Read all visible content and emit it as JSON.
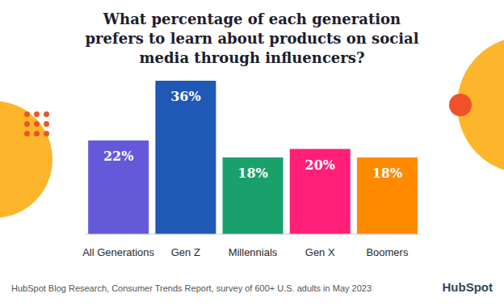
{
  "chart_data": {
    "type": "bar",
    "title": "What percentage of each generation prefers to learn about products on social media through influencers?",
    "categories": [
      "All Generations",
      "Gen Z",
      "Millennials",
      "Gen X",
      "Boomers"
    ],
    "values": [
      22,
      36,
      18,
      20,
      18
    ],
    "value_labels": [
      "22%",
      "36%",
      "18%",
      "20%",
      "18%"
    ],
    "colors": [
      "#6459d8",
      "#1f58b5",
      "#1aa06b",
      "#ff1f78",
      "#ff8a00"
    ],
    "ylim": [
      0,
      36
    ],
    "data_labels": true,
    "tick_labels": "x",
    "grid": false,
    "source": "HubSpot Blog Research, Consumer Trends Report, survey of 600+ U.S. adults in May 2023",
    "logo": "HubSpot"
  }
}
